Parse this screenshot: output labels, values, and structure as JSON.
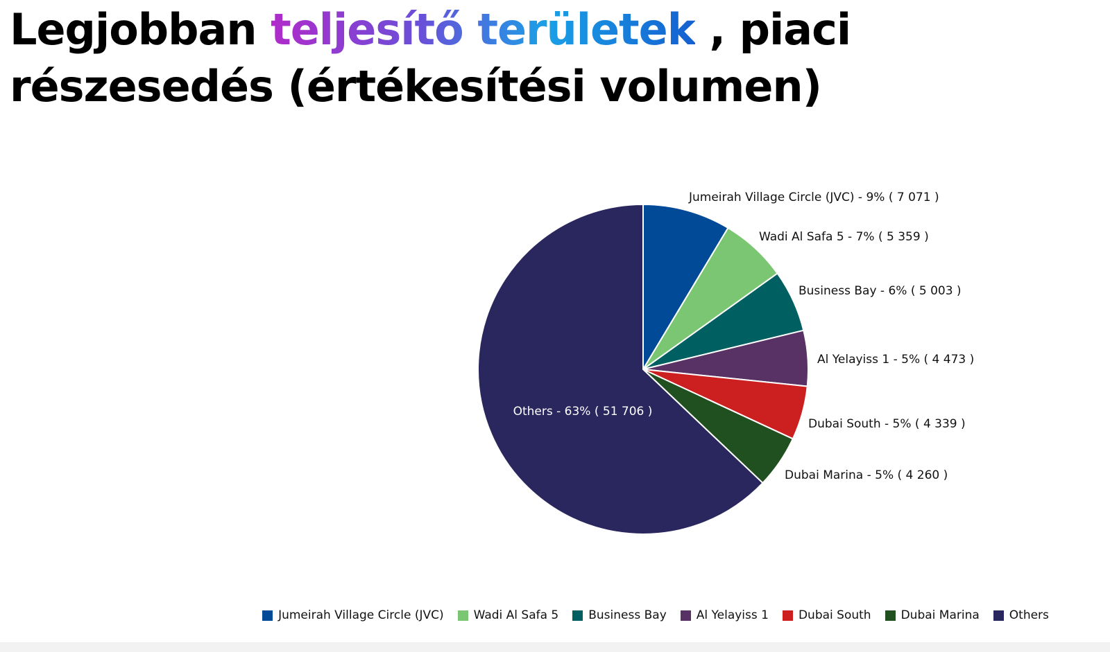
{
  "title": {
    "part1": "Legjobban ",
    "highlight": "teljesítő területek",
    "part2": " , piaci részesedés (értékesítési volumen)"
  },
  "chart_data": {
    "type": "pie",
    "categories": [
      "Jumeirah Village Circle (JVC)",
      "Wadi Al Safa 5",
      "Business Bay",
      "Al Yelayiss 1",
      "Dubai South",
      "Dubai Marina",
      "Others"
    ],
    "values": [
      7071,
      5359,
      5003,
      4473,
      4339,
      4260,
      51706
    ],
    "percents": [
      "9%",
      "7%",
      "6%",
      "5%",
      "5%",
      "5%",
      "63%"
    ],
    "labels": [
      "Jumeirah Village Circle (JVC) - 9% ( 7 071 )",
      "Wadi Al Safa 5 - 7% ( 5 359 )",
      "Business Bay - 6% ( 5 003 )",
      "Al Yelayiss 1 - 5% ( 4 473 )",
      "Dubai South - 5% ( 4 339 )",
      "Dubai Marina - 5% ( 4 260 )",
      "Others - 63% ( 51 706 )"
    ],
    "colors": [
      "#004a98",
      "#7bc673",
      "#005f60",
      "#583264",
      "#cc1f1f",
      "#215020",
      "#2a265e"
    ],
    "legend_position": "bottom"
  }
}
